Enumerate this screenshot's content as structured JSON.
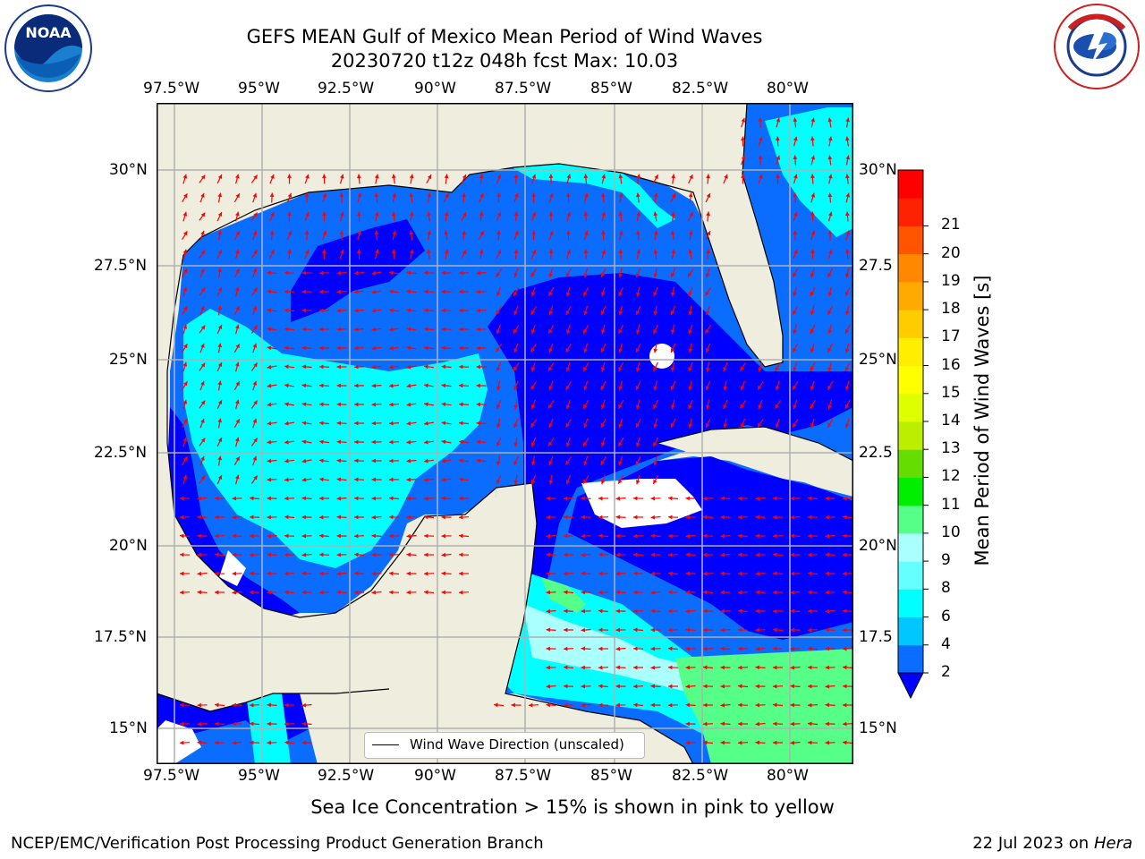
{
  "title": {
    "line1": "GEFS MEAN Gulf of Mexico Mean Period of Wind Waves",
    "line2": "20230720 t12z 048h fcst   Max: 10.03"
  },
  "axes": {
    "lon_ticks": [
      "97.5°W",
      "95°W",
      "92.5°W",
      "90°W",
      "87.5°W",
      "85°W",
      "82.5°W",
      "80°W"
    ],
    "lat_ticks_left": [
      "30°N",
      "27.5°N",
      "25°N",
      "22.5°N",
      "20°N",
      "17.5°N",
      "15°N"
    ],
    "lat_ticks_right": [
      "30°N",
      "27.5",
      "25°N",
      "22.5",
      "20°N",
      "17.5",
      "15°N"
    ]
  },
  "legend": {
    "label": "Wind Wave Direction (unscaled)"
  },
  "colorbar": {
    "label": "Mean Period of Wind Waves [s]",
    "ticks": [
      "2",
      "4",
      "6",
      "8",
      "9",
      "10",
      "11",
      "12",
      "13",
      "14",
      "15",
      "16",
      "17",
      "18",
      "19",
      "20",
      "21"
    ],
    "colors": [
      "#0a6dff",
      "#00c8ff",
      "#00ffff",
      "#66ffff",
      "#aaffff",
      "#55ff88",
      "#00ee00",
      "#66dd00",
      "#bbee00",
      "#ddff00",
      "#ffff00",
      "#ffee00",
      "#ffcc00",
      "#ffaa00",
      "#ff8800",
      "#ff5500",
      "#ff2200",
      "#ff0000"
    ],
    "extend_color": "#0000ff"
  },
  "ice_note": "Sea Ice Concentration > 15% is shown in pink to yellow",
  "footer": {
    "left": "NCEP/EMC/Verification Post Processing Product Generation Branch",
    "right_date": "22 Jul 2023 on ",
    "right_machine": "Hera"
  },
  "logos": {
    "noaa": "NOAA",
    "nws": "NATIONAL WEATHER SERVICE"
  },
  "map_colors": {
    "land": "#efeede",
    "ocean_low": "#0000ff",
    "ocean_2_4": "#0a6dff",
    "ocean_4_6": "#00ffff",
    "ocean_8_9": "#aaffff",
    "ocean_9_10": "#55ff88",
    "arrow": "#ff0000",
    "grid": "#b0b0b0"
  }
}
